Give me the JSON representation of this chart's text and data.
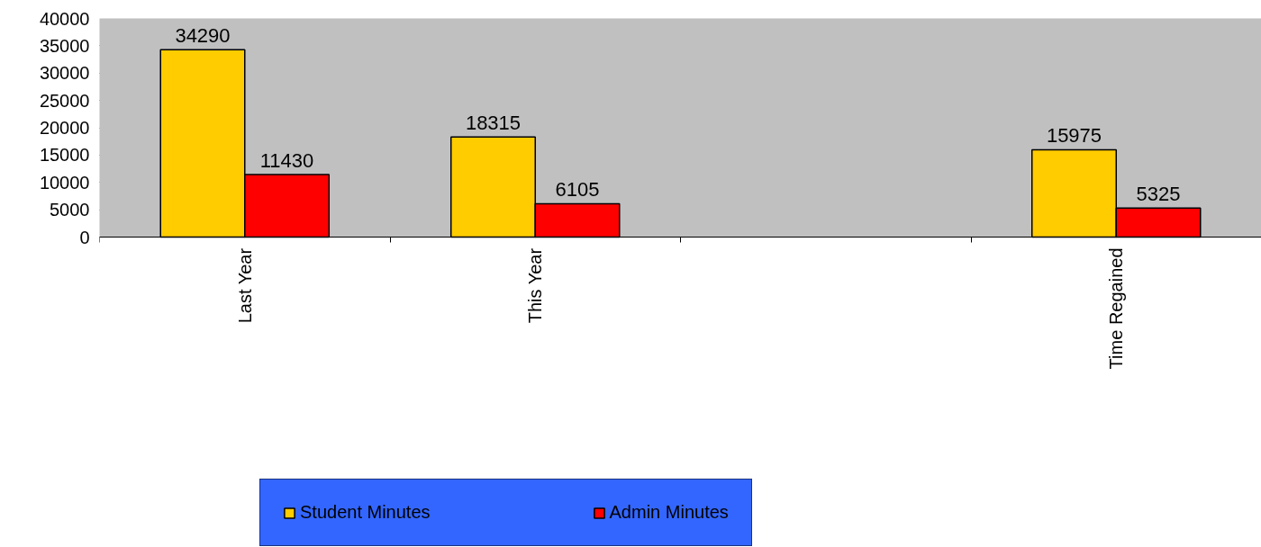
{
  "chart_data": {
    "type": "bar",
    "categories": [
      "Last Year",
      "This Year",
      null,
      "Time Regained"
    ],
    "series": [
      {
        "name": "Student Minutes",
        "color": "#ffcc00",
        "values": [
          34290,
          18315,
          null,
          15975
        ]
      },
      {
        "name": "Admin Minutes",
        "color": "#ff0000",
        "values": [
          11430,
          6105,
          null,
          5325
        ]
      }
    ],
    "ylim": [
      0,
      40000
    ],
    "yticks": [
      0,
      5000,
      10000,
      15000,
      20000,
      25000,
      30000,
      35000,
      40000
    ],
    "grid": "y",
    "legend": "bottom",
    "data_labels": true
  }
}
